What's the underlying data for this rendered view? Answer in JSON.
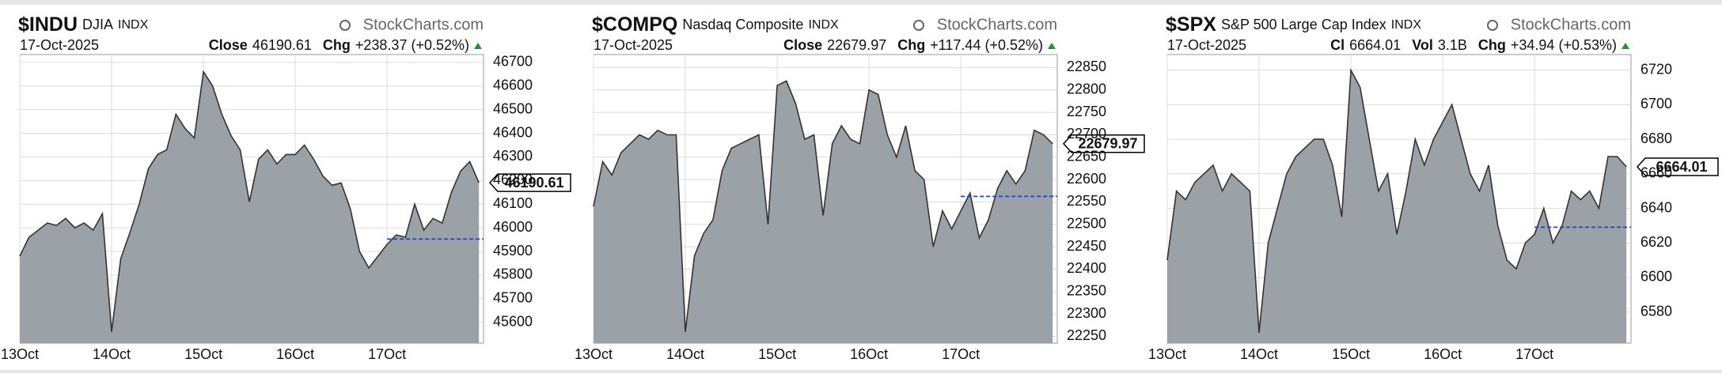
{
  "chart_data": [
    {
      "type": "area",
      "symbol": "$INDU",
      "name": "DJIA",
      "exchange": "INDX",
      "source": "StockCharts.com",
      "date": "17-Oct-2025",
      "stats": [
        {
          "label": "Close",
          "value": 46190.61
        },
        {
          "label": "Chg",
          "value": "+238.37 (+0.52%)"
        }
      ],
      "x": [
        0,
        0.1,
        0.2,
        0.3,
        0.4,
        0.5,
        0.6,
        0.7,
        0.8,
        0.9,
        1,
        1.1,
        1.2,
        1.3,
        1.4,
        1.5,
        1.6,
        1.7,
        1.8,
        1.9,
        2,
        2.1,
        2.2,
        2.3,
        2.4,
        2.5,
        2.6,
        2.7,
        2.8,
        2.9,
        3,
        3.1,
        3.2,
        3.3,
        3.4,
        3.5,
        3.6,
        3.7,
        3.8,
        3.9,
        4,
        4.1,
        4.2,
        4.3,
        4.4,
        4.5,
        4.6,
        4.7,
        4.8,
        4.9,
        5
      ],
      "series": [
        {
          "color": "#9aa2a8",
          "values": [
            45880,
            45960,
            45990,
            46020,
            46010,
            46040,
            46000,
            46020,
            45990,
            46060,
            45560,
            45870,
            45980,
            46100,
            46250,
            46310,
            46330,
            46480,
            46420,
            46380,
            46660,
            46600,
            46480,
            46390,
            46330,
            46110,
            46290,
            46330,
            46270,
            46310,
            46310,
            46350,
            46290,
            46220,
            46180,
            46190,
            46080,
            45900,
            45830,
            45880,
            45930,
            45970,
            45960,
            46100,
            45990,
            46040,
            46020,
            46150,
            46240,
            46280,
            46190.61
          ]
        }
      ],
      "reference": {
        "value": 45952.24,
        "start": 4,
        "color": "#1f3fd8"
      },
      "xlim": [
        0,
        5.05
      ],
      "xticks": [
        {
          "value": 0,
          "label": "13Oct"
        },
        {
          "value": 1,
          "label": "14Oct"
        },
        {
          "value": 2,
          "label": "15Oct"
        },
        {
          "value": 3,
          "label": "16Oct"
        },
        {
          "value": 4,
          "label": "17Oct"
        }
      ],
      "ylim": [
        45512,
        46733
      ],
      "yticks": [
        45600,
        45700,
        45800,
        45900,
        46000,
        46100,
        46200,
        46300,
        46400,
        46500,
        46600,
        46700
      ],
      "grid": true
    },
    {
      "type": "area",
      "symbol": "$COMPQ",
      "name": "Nasdaq Composite",
      "exchange": "INDX",
      "source": "StockCharts.com",
      "date": "17-Oct-2025",
      "stats": [
        {
          "label": "Close",
          "value": 22679.97
        },
        {
          "label": "Chg",
          "value": "+117.44 (+0.52%)"
        }
      ],
      "x": [
        0,
        0.1,
        0.2,
        0.3,
        0.4,
        0.5,
        0.6,
        0.7,
        0.8,
        0.9,
        1,
        1.1,
        1.2,
        1.3,
        1.4,
        1.5,
        1.6,
        1.7,
        1.8,
        1.9,
        2,
        2.1,
        2.2,
        2.3,
        2.4,
        2.5,
        2.6,
        2.7,
        2.8,
        2.9,
        3,
        3.1,
        3.2,
        3.3,
        3.4,
        3.5,
        3.6,
        3.7,
        3.8,
        3.9,
        4,
        4.1,
        4.2,
        4.3,
        4.4,
        4.5,
        4.6,
        4.7,
        4.8,
        4.9,
        5
      ],
      "series": [
        {
          "color": "#9aa2a8",
          "values": [
            22540,
            22640,
            22610,
            22660,
            22680,
            22700,
            22690,
            22710,
            22700,
            22700,
            22260,
            22430,
            22480,
            22510,
            22620,
            22670,
            22680,
            22690,
            22700,
            22500,
            22810,
            22820,
            22770,
            22690,
            22700,
            22520,
            22680,
            22720,
            22690,
            22680,
            22800,
            22790,
            22700,
            22650,
            22720,
            22620,
            22600,
            22450,
            22530,
            22490,
            22530,
            22570,
            22470,
            22510,
            22580,
            22620,
            22590,
            22620,
            22710,
            22700,
            22679.97
          ]
        }
      ],
      "reference": {
        "value": 22562.53,
        "start": 4,
        "color": "#1f3fd8"
      },
      "xlim": [
        0,
        5.05
      ],
      "xticks": [
        {
          "value": 0,
          "label": "13Oct"
        },
        {
          "value": 1,
          "label": "14Oct"
        },
        {
          "value": 2,
          "label": "15Oct"
        },
        {
          "value": 3,
          "label": "16Oct"
        },
        {
          "value": 4,
          "label": "17Oct"
        }
      ],
      "ylim": [
        22235,
        22879
      ],
      "yticks": [
        22250,
        22300,
        22350,
        22400,
        22450,
        22500,
        22550,
        22600,
        22650,
        22700,
        22750,
        22800,
        22850
      ],
      "grid": true
    },
    {
      "type": "area",
      "symbol": "$SPX",
      "name": "S&P 500 Large Cap Index",
      "exchange": "INDX",
      "source": "StockCharts.com",
      "date": "17-Oct-2025",
      "stats": [
        {
          "label": "Cl",
          "value": 6664.01
        },
        {
          "label": "Vol",
          "value": "3.1B"
        },
        {
          "label": "Chg",
          "value": "+34.94 (+0.53%)"
        }
      ],
      "x": [
        0,
        0.1,
        0.2,
        0.3,
        0.4,
        0.5,
        0.6,
        0.7,
        0.8,
        0.9,
        1,
        1.1,
        1.2,
        1.3,
        1.4,
        1.5,
        1.6,
        1.7,
        1.8,
        1.9,
        2,
        2.1,
        2.2,
        2.3,
        2.4,
        2.5,
        2.6,
        2.7,
        2.8,
        2.9,
        3,
        3.1,
        3.2,
        3.3,
        3.4,
        3.5,
        3.6,
        3.7,
        3.8,
        3.9,
        4,
        4.1,
        4.2,
        4.3,
        4.4,
        4.5,
        4.6,
        4.7,
        4.8,
        4.9,
        5
      ],
      "series": [
        {
          "color": "#9aa2a8",
          "values": [
            6610,
            6650,
            6645,
            6655,
            6660,
            6665,
            6650,
            6660,
            6655,
            6650,
            6568,
            6620,
            6640,
            6660,
            6670,
            6675,
            6680,
            6680,
            6665,
            6635,
            6720,
            6710,
            6680,
            6650,
            6660,
            6625,
            6650,
            6680,
            6665,
            6680,
            6690,
            6700,
            6680,
            6660,
            6650,
            6665,
            6630,
            6610,
            6605,
            6620,
            6625,
            6640,
            6620,
            6630,
            6650,
            6645,
            6650,
            6640,
            6670,
            6670,
            6664.01
          ]
        }
      ],
      "reference": {
        "value": 6629.07,
        "start": 4,
        "color": "#1f3fd8"
      },
      "xlim": [
        0,
        5.05
      ],
      "xticks": [
        {
          "value": 0,
          "label": "13Oct"
        },
        {
          "value": 1,
          "label": "14Oct"
        },
        {
          "value": 2,
          "label": "15Oct"
        },
        {
          "value": 3,
          "label": "16Oct"
        },
        {
          "value": 4,
          "label": "17Oct"
        }
      ],
      "ylim": [
        6562,
        6729
      ],
      "yticks": [
        6580,
        6600,
        6620,
        6640,
        6660,
        6680,
        6700,
        6720
      ],
      "grid": true
    }
  ]
}
